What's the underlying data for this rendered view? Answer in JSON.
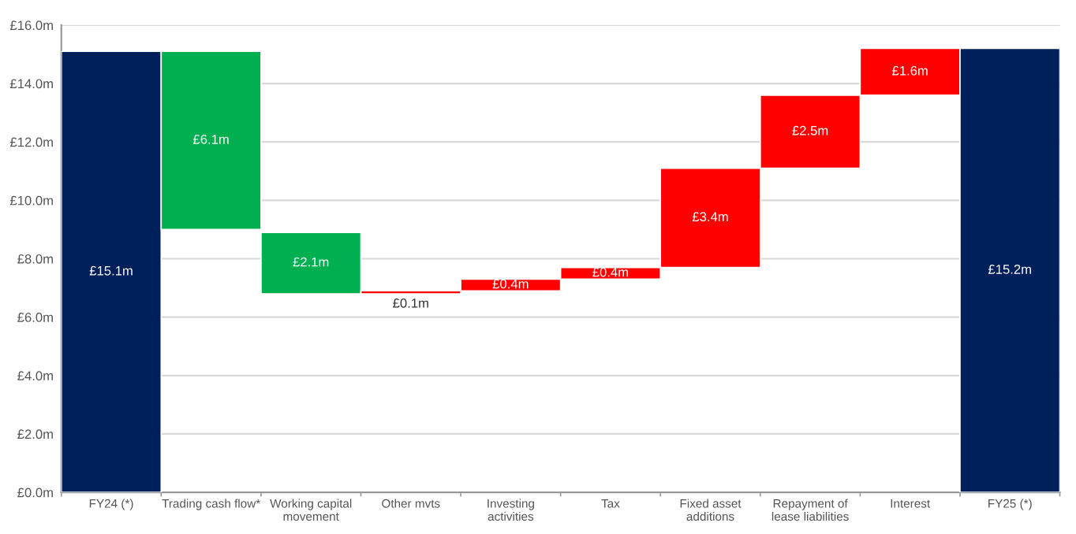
{
  "chart_data": {
    "type": "bar",
    "categories": [
      "FY24 (*)",
      "Trading cash flow*",
      "Working capital\nmovement",
      "Other mvts",
      "Investing\nactivities",
      "Tax",
      "Fixed asset\nadditions",
      "Repayment of\nlease liabilities",
      "Interest",
      "FY25 (*)"
    ],
    "values": [
      15.1,
      6.1,
      2.1,
      0.1,
      0.4,
      0.4,
      3.4,
      2.5,
      1.6,
      15.2
    ],
    "base": [
      0,
      9.0,
      6.8,
      6.8,
      6.9,
      7.3,
      7.7,
      11.1,
      13.6,
      0
    ],
    "colors": [
      "#00205b",
      "#00b050",
      "#00b050",
      "#ff0000",
      "#ff0000",
      "#ff0000",
      "#ff0000",
      "#ff0000",
      "#ff0000",
      "#00205b"
    ],
    "value_labels": [
      "£15.1m",
      "£6.1m",
      "£2.1m",
      "£0.1m",
      "£0.4m",
      "£0.4m",
      "£3.4m",
      "£2.5m",
      "£1.6m",
      "£15.2m"
    ],
    "ylim": [
      0,
      16
    ],
    "yticks": [
      {
        "value": 0,
        "label": "£0.0m"
      },
      {
        "value": 2,
        "label": "£2.0m"
      },
      {
        "value": 4,
        "label": "£4.0m"
      },
      {
        "value": 6,
        "label": "£6.0m"
      },
      {
        "value": 8,
        "label": "£8.0m"
      },
      {
        "value": 10,
        "label": "£10.0m"
      },
      {
        "value": 12,
        "label": "£12.0m"
      },
      {
        "value": 14,
        "label": "£14.0m"
      },
      {
        "value": 16,
        "label": "£16.0m"
      }
    ],
    "grid": "y",
    "legend": false
  }
}
